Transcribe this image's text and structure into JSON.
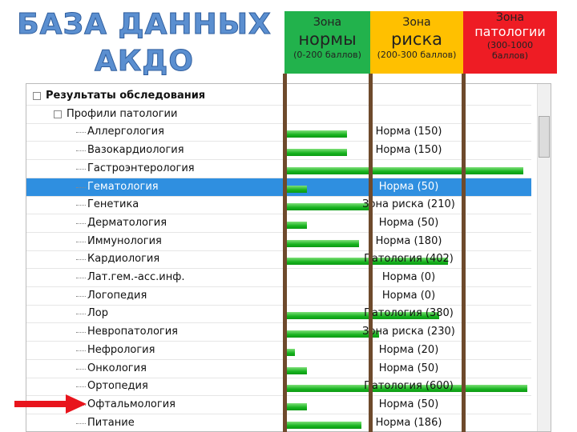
{
  "title_lines": [
    "БАЗА ДАННЫХ",
    "АКДО"
  ],
  "zones": [
    {
      "word": "Зона",
      "name": "нормы",
      "range": "(0-200 баллов)",
      "color": "#22b24c"
    },
    {
      "word": "Зона",
      "name": "риска",
      "range": "(200-300 баллов)",
      "color": "#ffc000"
    },
    {
      "word": "Зона",
      "name": "патологии",
      "range": "(300-1000 баллов)",
      "color": "#ee1c24"
    }
  ],
  "tree": {
    "root": "Результаты обследования",
    "group": "Профили патологии",
    "items": [
      {
        "name": "Аллергология",
        "value": 150,
        "label": "Норма (150)"
      },
      {
        "name": "Вазокардиология",
        "value": 150,
        "label": "Норма (150)"
      },
      {
        "name": "Гастроэнтерология",
        "value": 590
      },
      {
        "name": "Гематология",
        "value": 50,
        "label": "Норма (50)",
        "selected": true
      },
      {
        "name": "Генетика",
        "value": 210,
        "label": "Зона риска (210)"
      },
      {
        "name": "Дерматология",
        "value": 50,
        "label": "Норма (50)"
      },
      {
        "name": "Иммунология",
        "value": 180,
        "label": "Норма (180)"
      },
      {
        "name": "Кардиология",
        "value": 402,
        "label": "Патология (402)"
      },
      {
        "name": "Лат.гем.-асс.инф.",
        "value": 0,
        "label": "Норма (0)"
      },
      {
        "name": "Логопедия",
        "value": 0,
        "label": "Норма (0)"
      },
      {
        "name": "Лор",
        "value": 380,
        "label": "Патология (380)"
      },
      {
        "name": "Невропатология",
        "value": 230,
        "label": "Зона риска (230)"
      },
      {
        "name": "Нефрология",
        "value": 20,
        "label": "Норма (20)"
      },
      {
        "name": "Онкология",
        "value": 50,
        "label": "Норма (50)"
      },
      {
        "name": "Ортопедия",
        "value": 600,
        "label": "Патология (600)"
      },
      {
        "name": "Офтальмология",
        "value": 50,
        "label": "Норма (50)",
        "pointed": true
      },
      {
        "name": "Питание",
        "value": 186,
        "label": "Норма (186)"
      }
    ]
  }
}
